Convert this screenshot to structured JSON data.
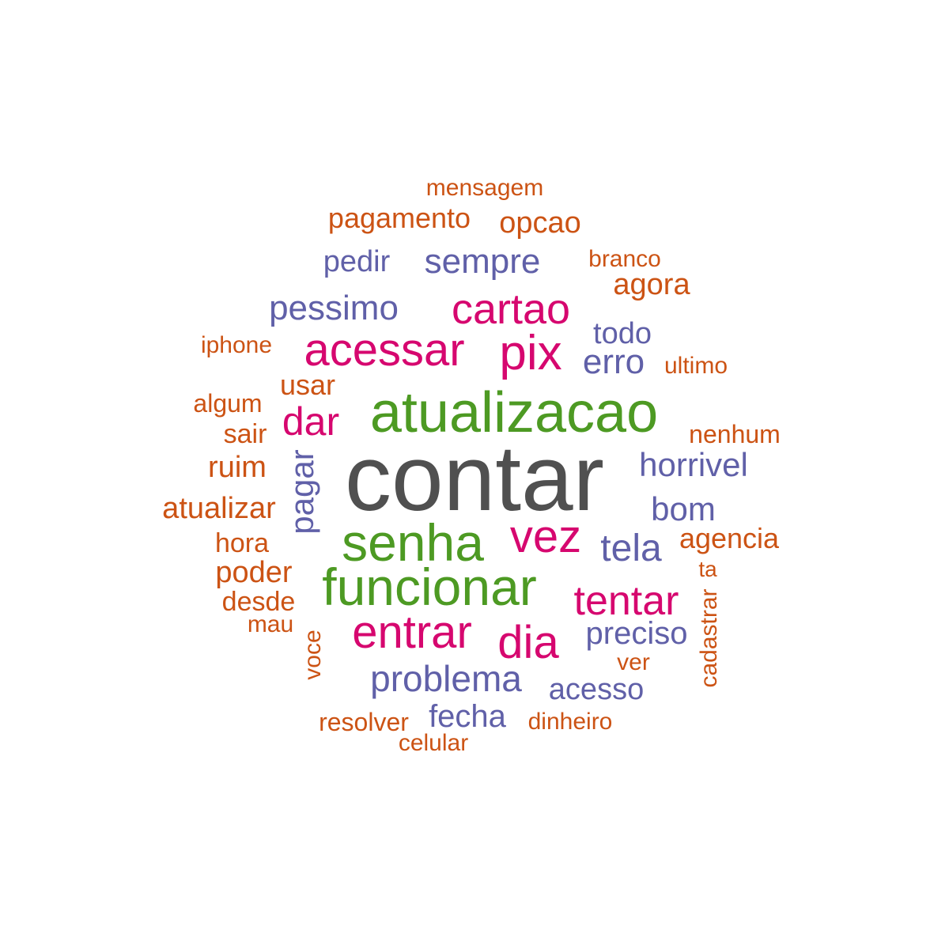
{
  "palette": {
    "gray": "#505050",
    "green": "#4d9a23",
    "magenta": "#d6076f",
    "purple": "#6060a8",
    "orange": "#cc5314"
  },
  "words": [
    {
      "text": "contar",
      "color": "#505050"
    },
    {
      "text": "atualizacao",
      "color": "#4d9a23"
    },
    {
      "text": "senha",
      "color": "#4d9a23"
    },
    {
      "text": "funcionar",
      "color": "#4d9a23"
    },
    {
      "text": "acessar",
      "color": "#d6076f"
    },
    {
      "text": "pix",
      "color": "#d6076f"
    },
    {
      "text": "cartao",
      "color": "#d6076f"
    },
    {
      "text": "vez",
      "color": "#d6076f"
    },
    {
      "text": "entrar",
      "color": "#d6076f"
    },
    {
      "text": "tentar",
      "color": "#d6076f"
    },
    {
      "text": "dia",
      "color": "#d6076f"
    },
    {
      "text": "dar",
      "color": "#d6076f"
    },
    {
      "text": "sempre",
      "color": "#6060a8"
    },
    {
      "text": "pessimo",
      "color": "#6060a8"
    },
    {
      "text": "pedir",
      "color": "#6060a8"
    },
    {
      "text": "todo",
      "color": "#6060a8"
    },
    {
      "text": "erro",
      "color": "#6060a8"
    },
    {
      "text": "horrivel",
      "color": "#6060a8"
    },
    {
      "text": "bom",
      "color": "#6060a8"
    },
    {
      "text": "tela",
      "color": "#6060a8"
    },
    {
      "text": "pagar",
      "color": "#6060a8"
    },
    {
      "text": "preciso",
      "color": "#6060a8"
    },
    {
      "text": "problema",
      "color": "#6060a8"
    },
    {
      "text": "acesso",
      "color": "#6060a8"
    },
    {
      "text": "fecha",
      "color": "#6060a8"
    },
    {
      "text": "mensagem",
      "color": "#cc5314"
    },
    {
      "text": "pagamento",
      "color": "#cc5314"
    },
    {
      "text": "opcao",
      "color": "#cc5314"
    },
    {
      "text": "branco",
      "color": "#cc5314"
    },
    {
      "text": "agora",
      "color": "#cc5314"
    },
    {
      "text": "iphone",
      "color": "#cc5314"
    },
    {
      "text": "ultimo",
      "color": "#cc5314"
    },
    {
      "text": "usar",
      "color": "#cc5314"
    },
    {
      "text": "algum",
      "color": "#cc5314"
    },
    {
      "text": "sair",
      "color": "#cc5314"
    },
    {
      "text": "nenhum",
      "color": "#cc5314"
    },
    {
      "text": "ruim",
      "color": "#cc5314"
    },
    {
      "text": "atualizar",
      "color": "#cc5314"
    },
    {
      "text": "hora",
      "color": "#cc5314"
    },
    {
      "text": "agencia",
      "color": "#cc5314"
    },
    {
      "text": "poder",
      "color": "#cc5314"
    },
    {
      "text": "ta",
      "color": "#cc5314"
    },
    {
      "text": "desde",
      "color": "#cc5314"
    },
    {
      "text": "mau",
      "color": "#cc5314"
    },
    {
      "text": "cadastrar",
      "color": "#cc5314"
    },
    {
      "text": "voce",
      "color": "#cc5314"
    },
    {
      "text": "ver",
      "color": "#cc5314"
    },
    {
      "text": "resolver",
      "color": "#cc5314"
    },
    {
      "text": "dinheiro",
      "color": "#cc5314"
    },
    {
      "text": "celular",
      "color": "#cc5314"
    }
  ]
}
